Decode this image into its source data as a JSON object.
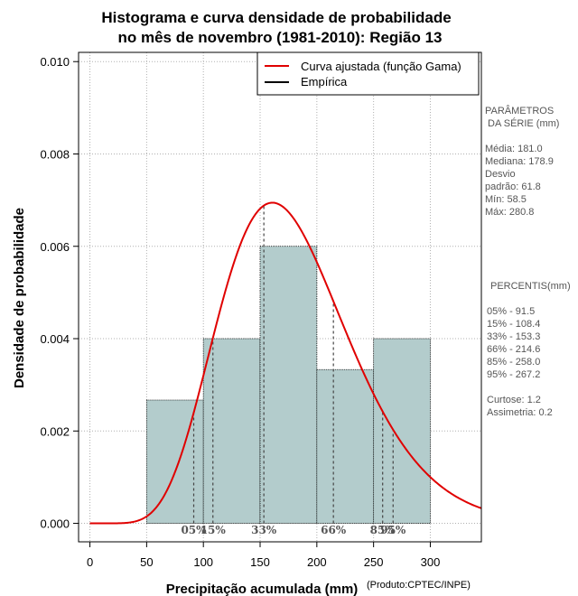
{
  "chart_data": {
    "type": "bar",
    "title_line1": "Histograma e curva densidade de probabilidade",
    "title_line2": "no mês de novembro (1981-2010): Região 13",
    "xlabel": "Precipitação acumulada (mm)",
    "ylabel": "Densidade de probabilidade",
    "credit": "(Produto:CPTEC/INPE)",
    "xlim": [
      -10,
      345
    ],
    "ylim": [
      -0.0004,
      0.0102
    ],
    "x_ticks": [
      0,
      50,
      100,
      150,
      200,
      250,
      300
    ],
    "y_ticks": [
      0.0,
      0.002,
      0.004,
      0.006,
      0.008,
      0.01
    ],
    "y_tick_labels": [
      "0.000",
      "0.002",
      "0.004",
      "0.006",
      "0.008",
      "0.010"
    ],
    "grid": true,
    "bins": [
      {
        "start": 50,
        "end": 100,
        "density": 0.00267
      },
      {
        "start": 100,
        "end": 150,
        "density": 0.004
      },
      {
        "start": 150,
        "end": 200,
        "density": 0.006
      },
      {
        "start": 200,
        "end": 250,
        "density": 0.00333
      },
      {
        "start": 250,
        "end": 300,
        "density": 0.004
      }
    ],
    "gamma_fit": {
      "shape": 9.0,
      "scale": 20.1
    },
    "percentile_markers": [
      {
        "label": "05%",
        "x": 91.5
      },
      {
        "label": "15%",
        "x": 108.4
      },
      {
        "label": "33%",
        "x": 153.3
      },
      {
        "label": "66%",
        "x": 214.6
      },
      {
        "label": "85%",
        "x": 258.0
      },
      {
        "label": "95%",
        "x": 267.2
      }
    ],
    "legend": {
      "position": "top-right",
      "items": [
        {
          "label": "Curva ajustada (função Gama)",
          "color": "#e00000"
        },
        {
          "label": "Empírica",
          "color": "#000000"
        }
      ]
    },
    "colors": {
      "bar_fill": "#b3cccc",
      "curve": "#e00000",
      "grid": "#b0b0b0"
    },
    "params_panel": {
      "heading": [
        "PARÂMETROS",
        "DA SÉRIE (mm)"
      ],
      "lines": [
        "Média:  181.0",
        "Mediana:  178.9",
        "Desvio",
        "padrão:  61.8",
        "Mín:  58.5",
        "Máx:  280.8"
      ]
    },
    "percentiles_panel": {
      "heading": "PERCENTIS(mm)",
      "lines": [
        "05% -   91.5",
        "15% -   108.4",
        "33% -   153.3",
        "66% -   214.6",
        "85% -   258.0",
        "95% -   267.2"
      ],
      "extra": [
        "Curtose:  1.2",
        "Assimetria:  0.2"
      ]
    }
  }
}
